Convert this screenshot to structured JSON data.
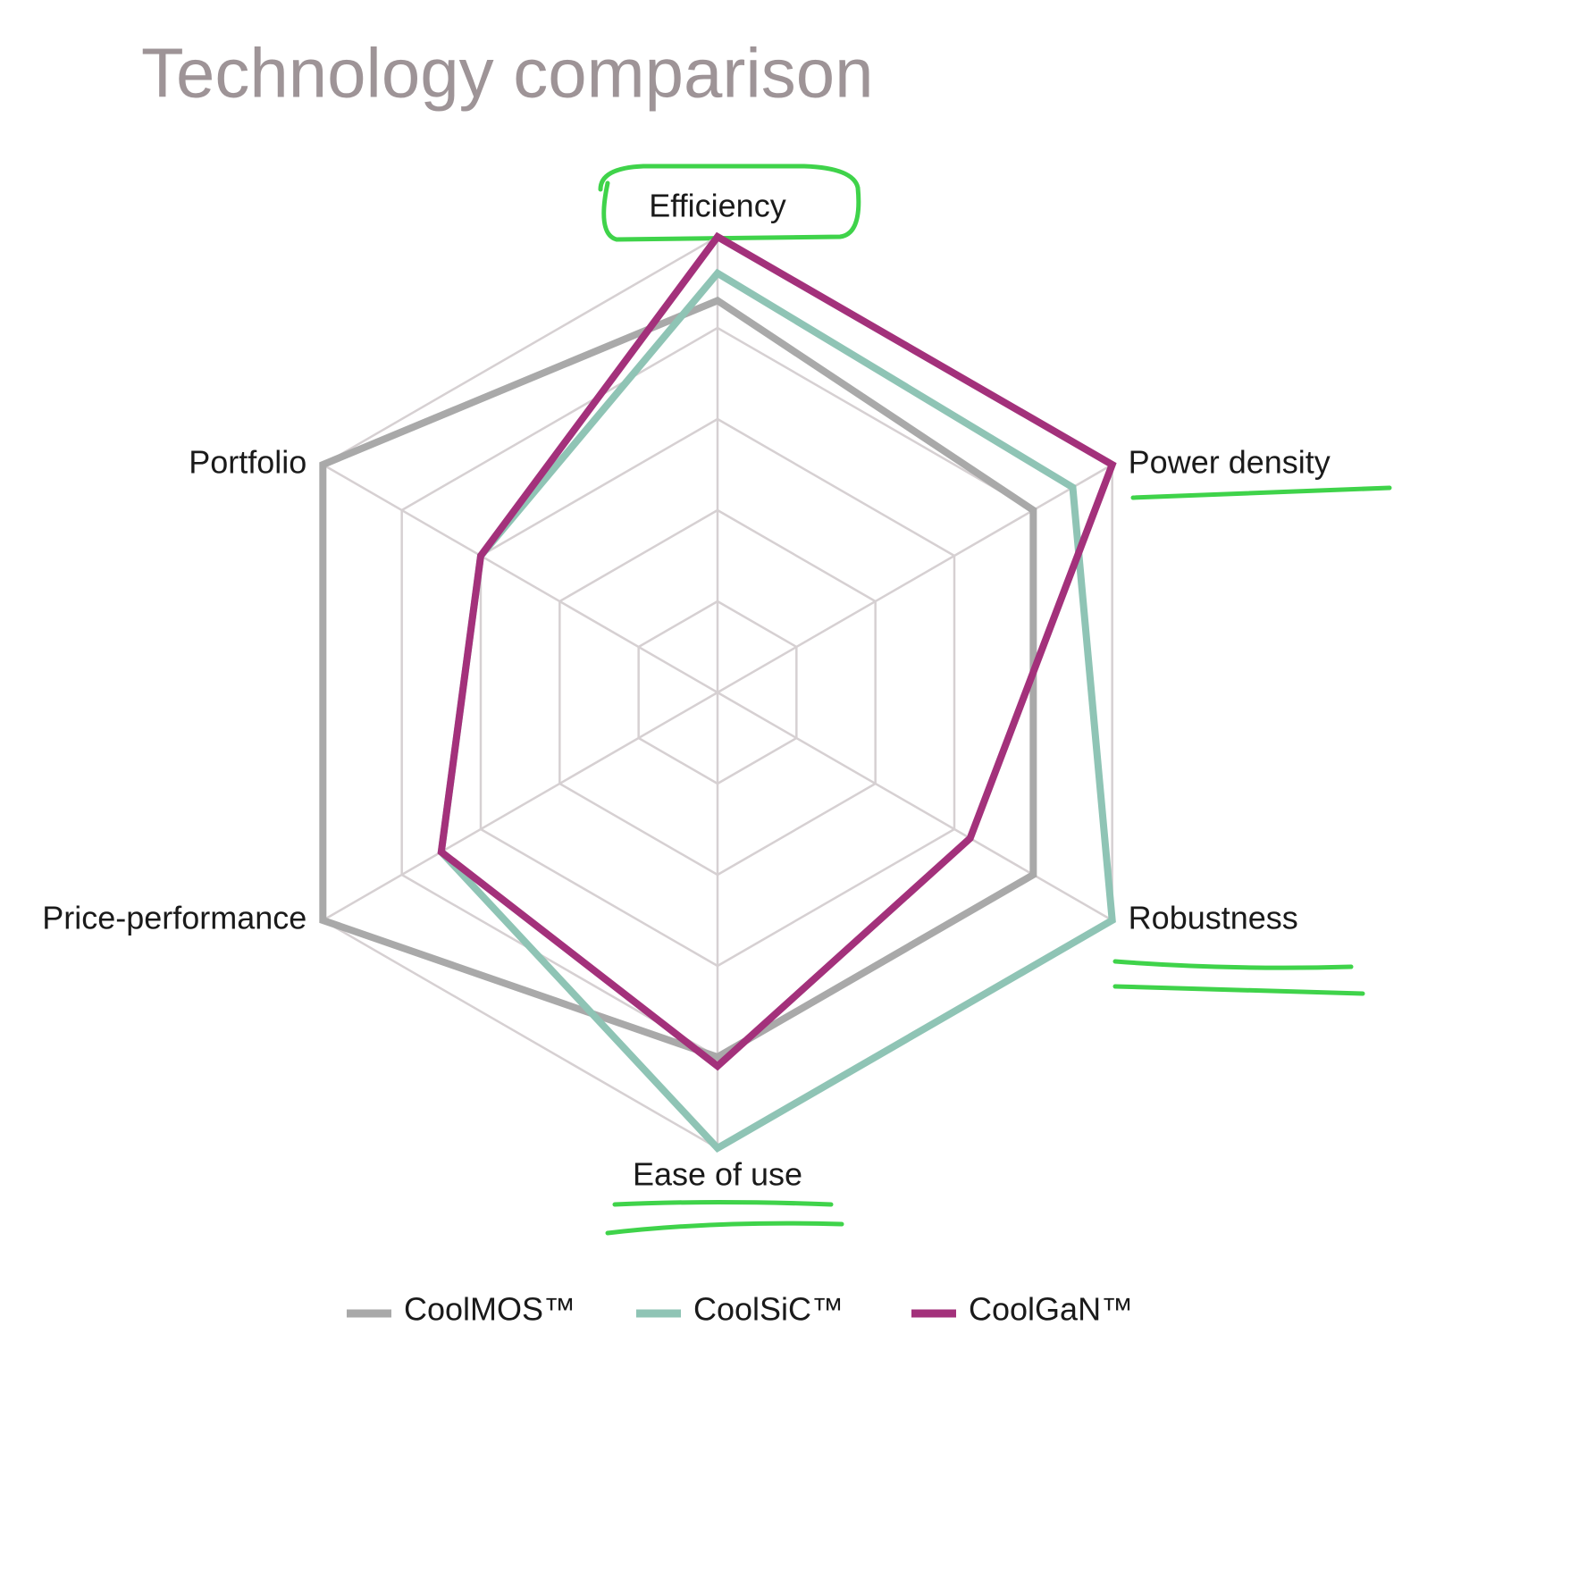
{
  "chart_data": {
    "type": "radar",
    "title": "Technology comparison",
    "categories": [
      "Efficiency",
      "Power density",
      "Robustness",
      "Ease of use",
      "Price-performance",
      "Portfolio"
    ],
    "series": [
      {
        "name": "CoolMOS™",
        "color": "#a9a9a9",
        "values": [
          4.3,
          4,
          4,
          4,
          5,
          5
        ]
      },
      {
        "name": "CoolSiC™",
        "color": "#8fc4b5",
        "values": [
          4.6,
          4.5,
          5,
          5,
          3.5,
          3
        ]
      },
      {
        "name": "CoolGaN™",
        "color": "#a3317b",
        "values": [
          5,
          5,
          3.2,
          4.1,
          3.5,
          3
        ]
      }
    ],
    "rlim": [
      0,
      5
    ],
    "rticks": [
      1,
      2,
      3,
      4,
      5
    ],
    "grid": true,
    "legend": "bottom"
  }
}
